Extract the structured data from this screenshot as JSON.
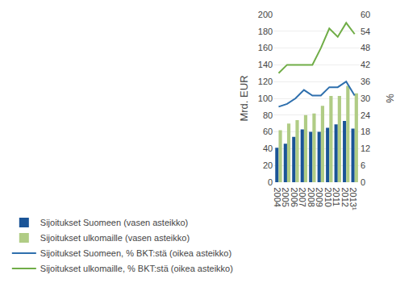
{
  "chart_data": {
    "type": "bar",
    "categories": [
      "2004",
      "2005",
      "2006",
      "2007",
      "2008",
      "2009",
      "2010",
      "2011",
      "2012",
      "2013¹"
    ],
    "series": [
      {
        "name": "Sijoitukset Suomeen (vasen asteikko)",
        "type": "bar",
        "color": "#1a5497",
        "values": [
          41,
          46,
          54,
          63,
          60,
          60,
          65,
          69,
          73,
          64
        ]
      },
      {
        "name": "Sijoitukset ulkomaille (vasen asteikko)",
        "type": "bar",
        "color": "#b0cc85",
        "values": [
          62,
          70,
          74,
          80,
          82,
          91,
          103,
          103,
          115,
          106
        ]
      },
      {
        "name": "Sijoitukset Suomeen, % BKT:stä (oikea asteikko)",
        "type": "line",
        "axis": "y2",
        "color": "#2e6fad",
        "values": [
          27,
          28,
          30,
          33,
          31,
          31,
          34,
          34,
          36,
          31
        ]
      },
      {
        "name": "Sijoitukset ulkomaille, % BKT:stä (oikea asteikko)",
        "type": "line",
        "axis": "y2",
        "color": "#70ad47",
        "values": [
          39,
          42,
          42,
          42,
          42,
          48,
          55,
          52,
          57,
          53
        ]
      }
    ],
    "y_label": "Mrd. EUR",
    "y2_label": "%",
    "ylim": [
      0,
      200
    ],
    "yticks": [
      0,
      20,
      40,
      60,
      80,
      100,
      120,
      140,
      160,
      180,
      200
    ],
    "y2lim": [
      0,
      60
    ],
    "y2ticks": [
      0,
      6,
      12,
      18,
      24,
      30,
      36,
      42,
      48,
      54,
      60
    ],
    "grid": true,
    "legend": "bottom"
  }
}
